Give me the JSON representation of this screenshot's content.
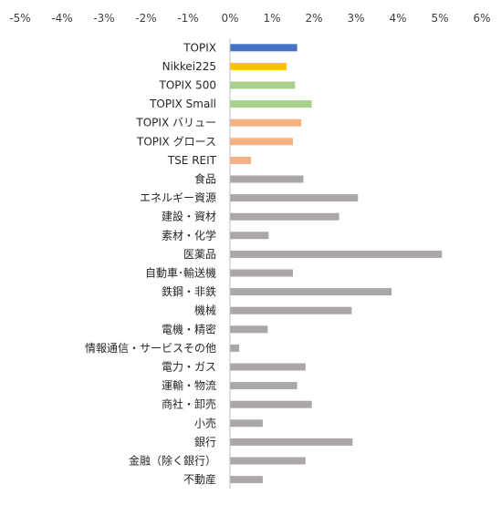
{
  "chart_data": {
    "type": "bar",
    "orientation": "horizontal",
    "title": "",
    "xlabel": "",
    "ylabel": "",
    "xlim": [
      -5,
      6
    ],
    "x_ticks": [
      -5,
      -4,
      -3,
      -2,
      -1,
      0,
      1,
      2,
      3,
      4,
      5,
      6
    ],
    "x_tick_labels": [
      "-5%",
      "-4%",
      "-3%",
      "-2%",
      "-1%",
      "0%",
      "1%",
      "2%",
      "3%",
      "4%",
      "5%",
      "6%"
    ],
    "grid": false,
    "legend": "none",
    "unit": "%",
    "categories": [
      "TOPIX",
      "Nikkei225",
      "TOPIX 500",
      "TOPIX Small",
      "TOPIX バリュー",
      "TOPIX グロース",
      "TSE REIT",
      "食品",
      "エネルギー資源",
      "建設・資材",
      "素材・化学",
      "医薬品",
      "自動車･輸送機",
      "鉄鋼・非鉄",
      "機械",
      "電機・精密",
      "情報通信・サービスその他",
      "電力・ガス",
      "運輸・物流",
      "商社・卸売",
      "小売",
      "銀行",
      "金融（除く銀行）",
      "不動産"
    ],
    "values": [
      1.6,
      1.35,
      1.55,
      1.95,
      1.7,
      1.5,
      0.5,
      1.75,
      3.05,
      2.6,
      0.92,
      5.05,
      1.5,
      3.85,
      2.9,
      0.9,
      0.22,
      1.8,
      1.6,
      1.95,
      0.78,
      2.92,
      1.8,
      0.78
    ],
    "bar_colors": [
      "#4472c4",
      "#ffc000",
      "#a9d18e",
      "#a9d18e",
      "#f4b183",
      "#f4b183",
      "#f4b183",
      "#aba6a8",
      "#aba6a8",
      "#aba6a8",
      "#aba6a8",
      "#aba6a8",
      "#aba6a8",
      "#aba6a8",
      "#aba6a8",
      "#aba6a8",
      "#aba6a8",
      "#aba6a8",
      "#aba6a8",
      "#aba6a8",
      "#aba6a8",
      "#aba6a8",
      "#aba6a8",
      "#aba6a8"
    ],
    "axis_color": "#bfbfbf"
  }
}
